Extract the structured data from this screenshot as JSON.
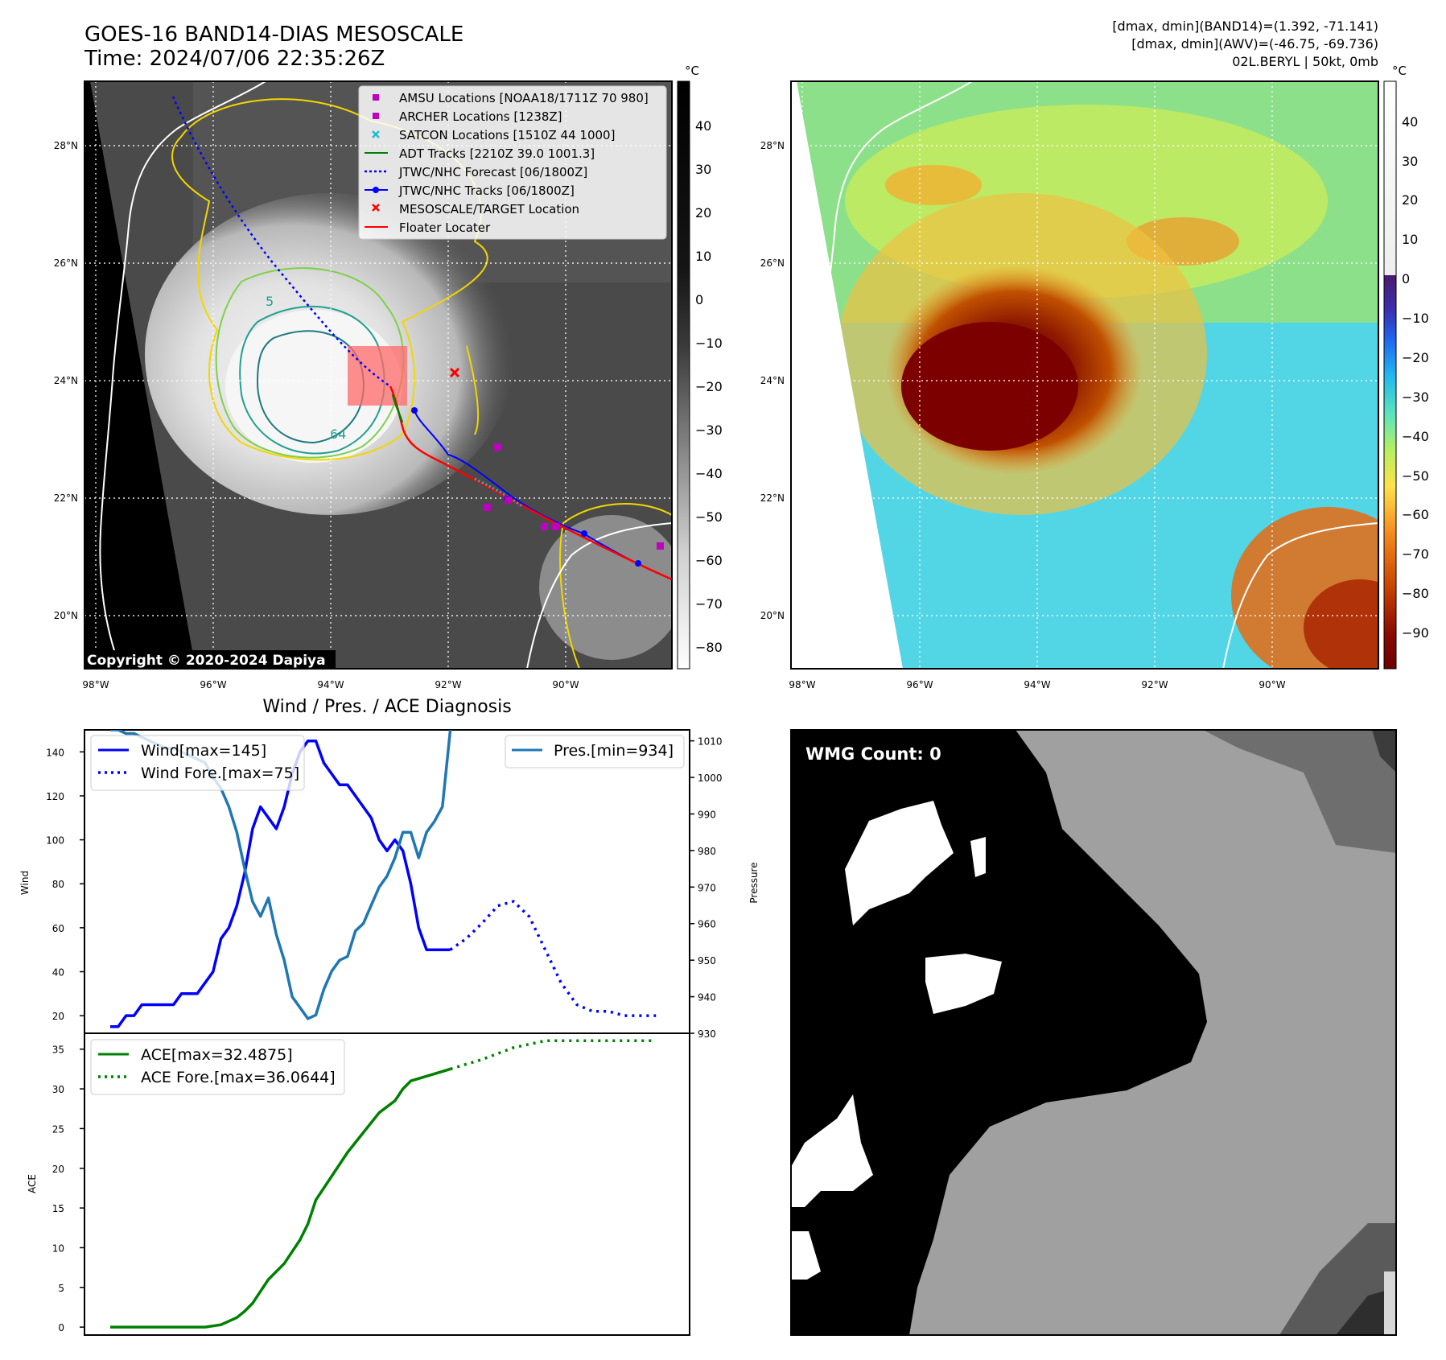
{
  "header": {
    "title_line1": "GOES-16 BAND14-DIAS MESOSCALE",
    "title_line2": "Time: 2024/07/06 22:35:26Z",
    "info_line1": "[dmax, dmin](BAND14)=(1.392, -71.141)",
    "info_line2": "[dmax, dmin](AWV)=(-46.75, -69.736)",
    "info_line3": "02L.BERYL | 50kt, 0mb"
  },
  "maps": {
    "lat_labels": [
      "28°N",
      "26°N",
      "24°N",
      "22°N",
      "20°N"
    ],
    "lon_labels": [
      "98°W",
      "96°W",
      "94°W",
      "92°W",
      "90°W"
    ],
    "copyright": "Copyright © 2020-2024 Dapiya",
    "contour_labels": [
      "5",
      "64"
    ],
    "legend": [
      {
        "label": "AMSU Locations [NOAA18/1711Z 70 980]",
        "color": "#c000c0",
        "marker": "square"
      },
      {
        "label": "ARCHER Locations [1238Z]",
        "color": "#c000c0",
        "marker": "square"
      },
      {
        "label": "SATCON Locations [1510Z 44 1000]",
        "color": "#17becf",
        "marker": "x"
      },
      {
        "label": "ADT Tracks [2210Z 39.0 1001.3]",
        "color": "#008000",
        "marker": "line"
      },
      {
        "label": "JTWC/NHC Forecast [06/1800Z]",
        "color": "#0000ff",
        "marker": "dotted"
      },
      {
        "label": "JTWC/NHC Tracks [06/1800Z]",
        "color": "#0000ff",
        "marker": "line-dot"
      },
      {
        "label": "MESOSCALE/TARGET Location",
        "color": "#ff0000",
        "marker": "x"
      },
      {
        "label": "Floater Locater",
        "color": "#ff0000",
        "marker": "line"
      }
    ],
    "cbar_unit": "°C",
    "cbar1_ticks": [
      "40",
      "30",
      "20",
      "10",
      "0",
      "−10",
      "−20",
      "−30",
      "−40",
      "−50",
      "−60",
      "−70",
      "−80"
    ],
    "cbar2_ticks": [
      "40",
      "30",
      "20",
      "10",
      "0",
      "−10",
      "−20",
      "−30",
      "−40",
      "−50",
      "−60",
      "−70",
      "−80",
      "−90"
    ]
  },
  "diag": {
    "title": "Wind / Pres. / ACE Diagnosis",
    "wind_ylabel": "Wind",
    "pres_ylabel": "Pressure",
    "ace_ylabel": "ACE",
    "wind_ticks": [
      "140",
      "120",
      "100",
      "80",
      "60",
      "40",
      "20"
    ],
    "pres_ticks": [
      "1010",
      "1000",
      "990",
      "980",
      "970",
      "960",
      "950",
      "940",
      "930"
    ],
    "ace_ticks": [
      "35",
      "30",
      "25",
      "20",
      "15",
      "10",
      "5",
      "0"
    ],
    "legend_wind": "Wind[max=145]",
    "legend_wind_fore": "Wind Fore.[max=75]",
    "legend_pres": "Pres.[min=934]",
    "legend_ace": "ACE[max=32.4875]",
    "legend_ace_fore": "ACE Fore.[max=36.0644]"
  },
  "wmg": {
    "label": "WMG Count: 0"
  },
  "chart_data": [
    {
      "type": "line",
      "title": "Wind / Pres. / ACE Diagnosis",
      "ylabel": "Wind",
      "ylim": [
        12,
        150
      ],
      "xlim": [
        0,
        70
      ],
      "series": [
        {
          "name": "Wind[max=145]",
          "color": "#0000ff",
          "style": "solid",
          "x": [
            0,
            1,
            2,
            3,
            4,
            5,
            6,
            7,
            8,
            9,
            10,
            11,
            12,
            13,
            14,
            15,
            16,
            17,
            18,
            19,
            20,
            21,
            22,
            23,
            24,
            25,
            26,
            27,
            28,
            29,
            30,
            31,
            32,
            33,
            34,
            35,
            36,
            37,
            38,
            39,
            40,
            41,
            42,
            43
          ],
          "values": [
            15,
            15,
            20,
            20,
            25,
            25,
            25,
            25,
            25,
            30,
            30,
            30,
            35,
            40,
            55,
            60,
            70,
            85,
            105,
            115,
            110,
            105,
            115,
            130,
            140,
            145,
            145,
            135,
            130,
            125,
            125,
            120,
            115,
            110,
            100,
            95,
            100,
            95,
            80,
            60,
            50,
            50,
            50,
            50
          ]
        },
        {
          "name": "Wind Fore.[max=75]",
          "color": "#0000ff",
          "style": "dotted",
          "x": [
            43,
            45,
            47,
            49,
            51,
            53,
            55,
            57,
            59,
            61,
            63,
            65,
            67,
            69
          ],
          "values": [
            50,
            55,
            62,
            70,
            72,
            65,
            50,
            35,
            25,
            22,
            22,
            20,
            20,
            20
          ]
        },
        {
          "name": "Pres.[min=934]",
          "color": "#1f77b4",
          "style": "solid",
          "axis": "pressure",
          "ylim": [
            930,
            1013
          ],
          "x": [
            0,
            1,
            2,
            3,
            4,
            5,
            6,
            7,
            8,
            9,
            10,
            11,
            12,
            13,
            14,
            15,
            16,
            17,
            18,
            19,
            20,
            21,
            22,
            23,
            24,
            25,
            26,
            27,
            28,
            29,
            30,
            31,
            32,
            33,
            34,
            35,
            36,
            37,
            38,
            39,
            40,
            41,
            42,
            43
          ],
          "values": [
            1013,
            1013,
            1012,
            1012,
            1011,
            1010,
            1009,
            1008,
            1008,
            1007,
            1006,
            1005,
            1004,
            1000,
            997,
            992,
            985,
            975,
            966,
            962,
            967,
            957,
            950,
            940,
            937,
            934,
            935,
            942,
            947,
            950,
            951,
            958,
            960,
            965,
            970,
            973,
            978,
            985,
            985,
            978,
            985,
            988,
            992,
            1013
          ]
        }
      ]
    },
    {
      "type": "line",
      "ylabel": "ACE",
      "ylim": [
        -1,
        37
      ],
      "xlim": [
        0,
        70
      ],
      "series": [
        {
          "name": "ACE[max=32.4875]",
          "color": "#008000",
          "style": "solid",
          "x": [
            0,
            4,
            8,
            12,
            14,
            16,
            17,
            18,
            19,
            20,
            22,
            24,
            25,
            26,
            28,
            30,
            32,
            34,
            36,
            37,
            38,
            40,
            42,
            43
          ],
          "values": [
            0,
            0,
            0,
            0,
            0.3,
            1.2,
            2,
            3,
            4.5,
            6,
            8,
            11,
            13,
            16,
            19,
            22,
            24.5,
            27,
            28.5,
            30,
            31,
            31.6,
            32.2,
            32.5
          ]
        },
        {
          "name": "ACE Fore.[max=36.0644]",
          "color": "#008000",
          "style": "dotted",
          "x": [
            43,
            47,
            51,
            55,
            59,
            63,
            67,
            69
          ],
          "values": [
            32.5,
            33.7,
            35.2,
            36.06,
            36.06,
            36.06,
            36.06,
            36.06
          ]
        }
      ]
    }
  ]
}
